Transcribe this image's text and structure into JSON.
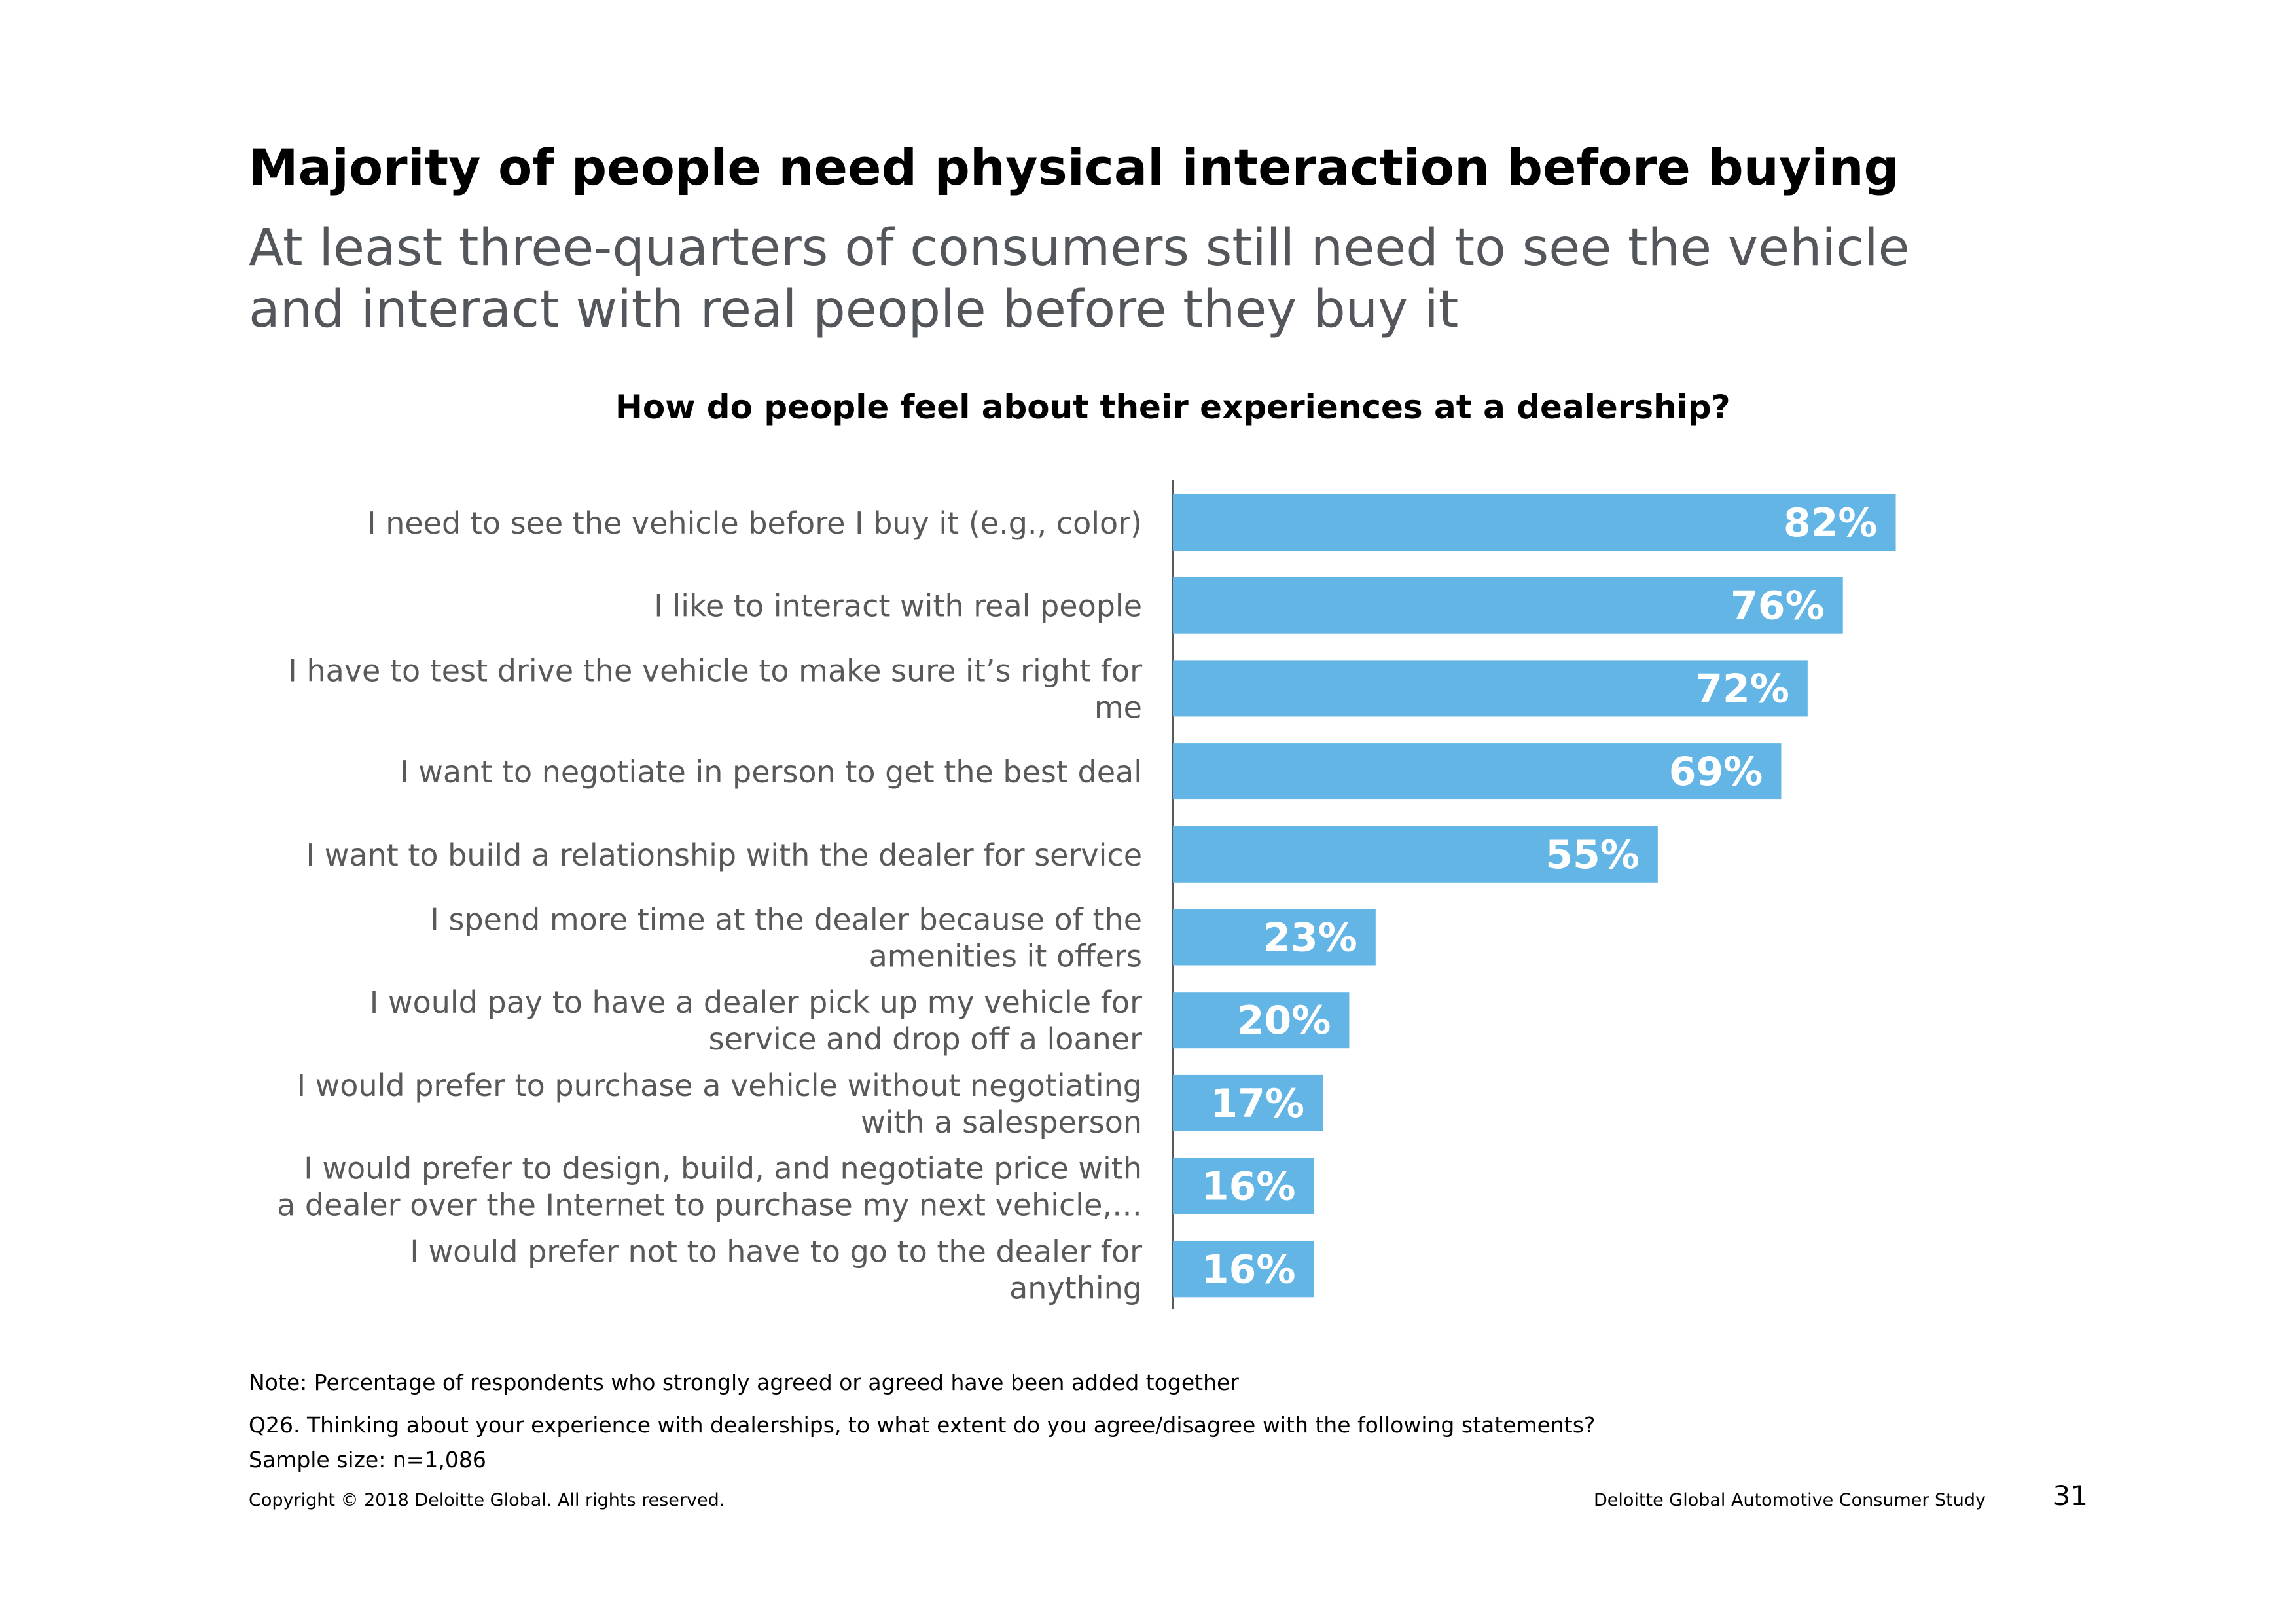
{
  "header": {
    "title": "Majority of people need physical interaction before buying",
    "subtitle": "At least three-quarters of consumers still need to see the vehicle and interact with real people before they buy it"
  },
  "chart_data": {
    "type": "bar",
    "orientation": "horizontal",
    "title": "How do people feel about their experiences at a dealership?",
    "categories": [
      [
        "I need to see the vehicle before I buy it (e.g., color)"
      ],
      [
        "I like to interact with real people"
      ],
      [
        "I have to test drive the vehicle to make sure it’s right for",
        "me"
      ],
      [
        "I want to negotiate in person to get the best deal"
      ],
      [
        "I want to build a relationship with the dealer for service"
      ],
      [
        "I spend more time at the dealer because of the",
        "amenities it offers"
      ],
      [
        "I would pay to have a dealer pick up my vehicle for",
        "service and drop off a loaner"
      ],
      [
        "I would prefer to purchase a vehicle without negotiating",
        "with a salesperson"
      ],
      [
        "I would prefer to design, build, and negotiate price with",
        "a dealer over the Internet to purchase my next vehicle,…"
      ],
      [
        "I would prefer not to have to go to the dealer for",
        "anything"
      ]
    ],
    "values": [
      82,
      76,
      72,
      69,
      55,
      23,
      20,
      17,
      16,
      16
    ],
    "value_labels": [
      "82%",
      "76%",
      "72%",
      "69%",
      "55%",
      "23%",
      "20%",
      "17%",
      "16%",
      "16%"
    ],
    "bar_color": "#62b5e5",
    "grid": false,
    "legend": "none"
  },
  "footer": {
    "note": "Note: Percentage of respondents who strongly agreed or agreed have been added together",
    "question": "Q26. Thinking about your experience with dealerships, to what extent do you agree/disagree with the following statements?",
    "sample": "Sample size: n=1,086",
    "copyright": "Copyright © 2018 Deloitte Global. All rights reserved.",
    "study": "Deloitte Global Automotive Consumer Study",
    "page_number": "31"
  }
}
